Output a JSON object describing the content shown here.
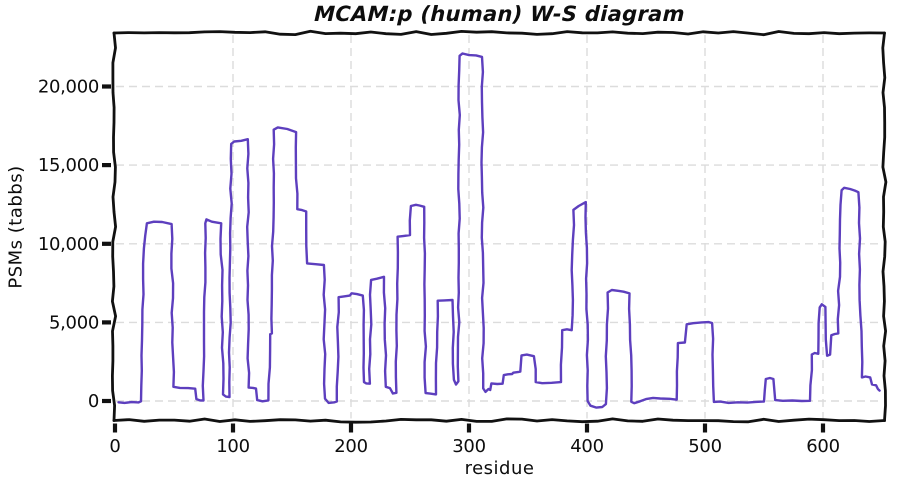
{
  "figure": {
    "background": "#ffffff",
    "text_color": "#0d0d0d",
    "frame_color": "#111111",
    "grid_color": "#dcdcdc"
  },
  "chart_data": {
    "type": "line",
    "style": "xkcd-handdrawn-step",
    "title": "MCAM:p (human) W-S diagram",
    "xlabel": "residue",
    "ylabel": "PSMs (tabbs)",
    "xlim": [
      -13,
      652
    ],
    "ylim": [
      -1350,
      23400
    ],
    "grid": true,
    "legend": null,
    "x_ticks": [
      0,
      100,
      200,
      300,
      400,
      500,
      600
    ],
    "x_tick_labels": [
      "0",
      "100",
      "200",
      "300",
      "400",
      "500",
      "600"
    ],
    "y_ticks": [
      0,
      5000,
      10000,
      15000,
      20000
    ],
    "y_tick_labels": [
      "0",
      "5,000",
      "10,000",
      "15,000",
      "20,000"
    ],
    "line_color": "#5d3fbe",
    "line_width": 2.4,
    "series": [
      {
        "name": "PSMs",
        "points": [
          [
            3,
            -80
          ],
          [
            8,
            -120
          ],
          [
            14,
            -70
          ],
          [
            20,
            -90
          ],
          [
            22,
            -20
          ],
          [
            24.5,
            9700
          ],
          [
            27,
            11300
          ],
          [
            33,
            11400
          ],
          [
            40,
            11380
          ],
          [
            48,
            11250
          ],
          [
            49.5,
            900
          ],
          [
            55,
            830
          ],
          [
            62,
            820
          ],
          [
            68,
            780
          ],
          [
            69,
            120
          ],
          [
            72,
            40
          ],
          [
            75,
            30
          ],
          [
            76.5,
            11300
          ],
          [
            77.5,
            11550
          ],
          [
            82,
            11400
          ],
          [
            90,
            11300
          ],
          [
            91.5,
            420
          ],
          [
            94,
            280
          ],
          [
            97,
            250
          ],
          [
            98.5,
            16350
          ],
          [
            101,
            16500
          ],
          [
            107,
            16550
          ],
          [
            112.5,
            16650
          ],
          [
            113.2,
            850
          ],
          [
            117,
            830
          ],
          [
            119.5,
            790
          ],
          [
            120.5,
            60
          ],
          [
            125,
            -20
          ],
          [
            130,
            40
          ],
          [
            131.5,
            4250
          ],
          [
            133,
            4300
          ],
          [
            134.5,
            17250
          ],
          [
            138,
            17400
          ],
          [
            146,
            17300
          ],
          [
            153.5,
            17100
          ],
          [
            154.5,
            12200
          ],
          [
            158,
            12150
          ],
          [
            162,
            12050
          ],
          [
            162.8,
            8750
          ],
          [
            170,
            8700
          ],
          [
            177,
            8650
          ],
          [
            178,
            150
          ],
          [
            181,
            -120
          ],
          [
            186,
            -80
          ],
          [
            188,
            -30
          ],
          [
            189.5,
            6600
          ],
          [
            194,
            6650
          ],
          [
            199,
            6700
          ],
          [
            200.5,
            6850
          ],
          [
            205,
            6800
          ],
          [
            210,
            6700
          ],
          [
            211,
            1200
          ],
          [
            213,
            1120
          ],
          [
            216,
            1100
          ],
          [
            217,
            7700
          ],
          [
            222,
            7780
          ],
          [
            228,
            7900
          ],
          [
            229.5,
            900
          ],
          [
            233,
            820
          ],
          [
            235.5,
            480
          ],
          [
            238.5,
            520
          ],
          [
            239.5,
            10450
          ],
          [
            245,
            10500
          ],
          [
            250,
            10550
          ],
          [
            250.8,
            12400
          ],
          [
            255,
            12480
          ],
          [
            258,
            12430
          ],
          [
            262,
            12350
          ],
          [
            263.2,
            500
          ],
          [
            267,
            470
          ],
          [
            272,
            420
          ],
          [
            273.5,
            6380
          ],
          [
            279,
            6400
          ],
          [
            286,
            6420
          ],
          [
            287.2,
            1350
          ],
          [
            289,
            1050
          ],
          [
            291,
            1250
          ],
          [
            292,
            21950
          ],
          [
            294.5,
            22100
          ],
          [
            300,
            22000
          ],
          [
            306,
            21980
          ],
          [
            311,
            21880
          ],
          [
            312,
            800
          ],
          [
            314,
            580
          ],
          [
            316.5,
            760
          ],
          [
            318,
            700
          ],
          [
            319,
            1120
          ],
          [
            324,
            1080
          ],
          [
            328.5,
            1100
          ],
          [
            329.5,
            1650
          ],
          [
            333,
            1700
          ],
          [
            336.5,
            1720
          ],
          [
            337.5,
            1800
          ],
          [
            342,
            1850
          ],
          [
            343.5,
            1870
          ],
          [
            344.5,
            2900
          ],
          [
            349,
            2950
          ],
          [
            355,
            2850
          ],
          [
            356.5,
            1200
          ],
          [
            362,
            1130
          ],
          [
            370,
            1160
          ],
          [
            378,
            1200
          ],
          [
            379,
            4500
          ],
          [
            383,
            4560
          ],
          [
            387,
            4500
          ],
          [
            388.5,
            12150
          ],
          [
            393,
            12400
          ],
          [
            399,
            12650
          ],
          [
            400.5,
            0
          ],
          [
            403,
            -300
          ],
          [
            408,
            -420
          ],
          [
            413,
            -380
          ],
          [
            416,
            -200
          ],
          [
            417.5,
            6900
          ],
          [
            421,
            7060
          ],
          [
            427,
            7000
          ],
          [
            431,
            6950
          ],
          [
            436,
            6840
          ],
          [
            437.5,
            -50
          ],
          [
            440,
            -140
          ],
          [
            445,
            -20
          ],
          [
            450,
            120
          ],
          [
            456,
            200
          ],
          [
            462,
            160
          ],
          [
            470,
            140
          ],
          [
            476,
            80
          ],
          [
            477,
            3680
          ],
          [
            483,
            3720
          ],
          [
            484.5,
            4880
          ],
          [
            490,
            4950
          ],
          [
            497,
            5000
          ],
          [
            503,
            5020
          ],
          [
            506,
            4960
          ],
          [
            507.5,
            -60
          ],
          [
            513,
            -40
          ],
          [
            520,
            -120
          ],
          [
            528,
            -80
          ],
          [
            536,
            -100
          ],
          [
            543,
            -60
          ],
          [
            550,
            -30
          ],
          [
            551.5,
            1400
          ],
          [
            555,
            1460
          ],
          [
            558,
            1400
          ],
          [
            559.5,
            60
          ],
          [
            566,
            10
          ],
          [
            574,
            30
          ],
          [
            582,
            0
          ],
          [
            589,
            10
          ],
          [
            590.5,
            2950
          ],
          [
            593,
            3050
          ],
          [
            596,
            3000
          ],
          [
            597.2,
            5950
          ],
          [
            599,
            6150
          ],
          [
            602,
            5980
          ],
          [
            603.5,
            2880
          ],
          [
            606,
            2950
          ],
          [
            607,
            4180
          ],
          [
            610,
            4260
          ],
          [
            613,
            4300
          ],
          [
            614,
            9700
          ],
          [
            615.8,
            13400
          ],
          [
            618,
            13560
          ],
          [
            623,
            13480
          ],
          [
            627,
            13380
          ],
          [
            630,
            13280
          ],
          [
            633,
            1500
          ],
          [
            636,
            1560
          ],
          [
            640,
            1500
          ],
          [
            641.5,
            1050
          ],
          [
            645,
            1000
          ],
          [
            646.5,
            760
          ],
          [
            648,
            660
          ]
        ]
      }
    ]
  }
}
